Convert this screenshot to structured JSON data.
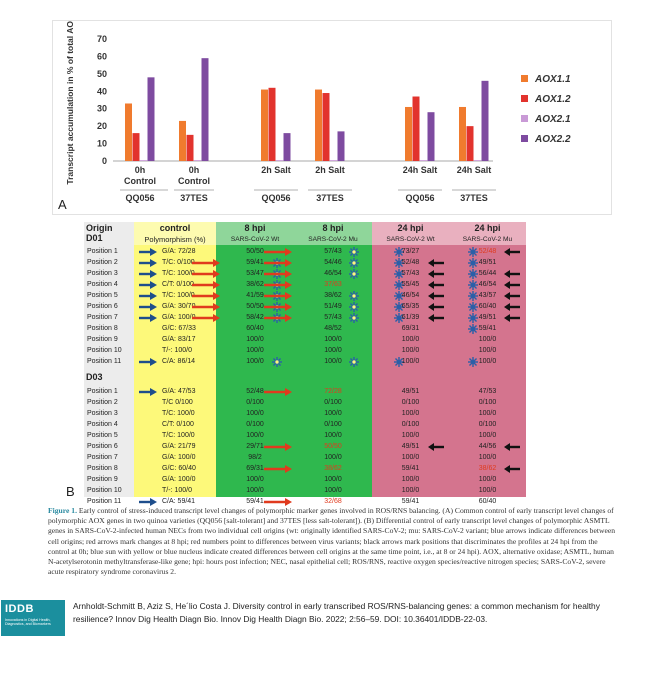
{
  "panel_a_letter": "A",
  "panel_b_letter": "B",
  "chart_data": {
    "type": "bar",
    "ylabel": "Transcript accumulation in % of total AOX",
    "ylim": [
      0,
      70
    ],
    "yticks": [
      0,
      10,
      20,
      30,
      40,
      50,
      60,
      70
    ],
    "categories": [
      "0h Control",
      "0h Control",
      "2h Salt",
      "2h Salt",
      "24h Salt",
      "24h Salt"
    ],
    "groups": [
      "QQ056",
      "37TES",
      "QQ056",
      "37TES",
      "QQ056",
      "37TES"
    ],
    "series": [
      {
        "name": "AOX1.1",
        "color": "#f07b2e",
        "values": [
          33,
          23,
          41,
          41,
          31,
          31
        ]
      },
      {
        "name": "AOX1.2",
        "color": "#e2332d",
        "values": [
          16,
          15,
          42,
          39,
          37,
          20
        ]
      },
      {
        "name": "AOX2.1",
        "color": "#c99ad6",
        "values": [
          0.5,
          0.5,
          0.5,
          0.5,
          0.5,
          0.5
        ]
      },
      {
        "name": "AOX2.2",
        "color": "#7e4ba0",
        "values": [
          48,
          59,
          16,
          17,
          28,
          46
        ]
      }
    ],
    "grid": false,
    "legend": "right"
  },
  "table": {
    "col_headers": [
      "Origin",
      "control",
      "8 hpi",
      "8 hpi",
      "24 hpi",
      "24 hpi"
    ],
    "d01_label": "D01",
    "d03_label": "D03",
    "sub_headers": [
      "Polymorphism (%)",
      "SARS-CoV-2 Wt",
      "SARS-CoV-2 Mu",
      "SARS-CoV-2 Wt",
      "SARS-CoV-2 Mu"
    ],
    "d01_rows": [
      {
        "pos": "Position 1",
        "ctrl": "G/A: 72/28",
        "c8w": "50/50",
        "c8m": "57/43",
        "c24w": "73/27",
        "c24m": "52/48",
        "blue": true,
        "r8m": true,
        "s8w": false,
        "s8m": true,
        "b24w": true,
        "b24m": true,
        "bk24w": false,
        "bk24m": true,
        "red24m": true
      },
      {
        "pos": "Position 2",
        "ctrl": "T/C: 0/100",
        "c8w": "59/41",
        "c8m": "54/46",
        "c24w": "52/48",
        "c24m": "49/51",
        "blue": true,
        "r8w": true,
        "r8m": true,
        "s8w": true,
        "s8m": true,
        "b24w": true,
        "b24m": true,
        "bk24w": true,
        "bk24m": false
      },
      {
        "pos": "Position 3",
        "ctrl": "T/C: 100/0",
        "c8w": "53/47",
        "c8m": "46/54",
        "c24w": "57/43",
        "c24m": "56/44",
        "blue": true,
        "r8w": true,
        "r8m": true,
        "s8w": true,
        "s8m": true,
        "b24w": true,
        "b24m": true,
        "bk24w": true,
        "bk24m": true
      },
      {
        "pos": "Position 4",
        "ctrl": "C/T: 0/100",
        "c8w": "38/62",
        "c8m": "37/63",
        "c24w": "55/45",
        "c24m": "46/54",
        "blue": true,
        "r8w": true,
        "r8m": true,
        "s8w": true,
        "s8m": false,
        "red8m": true,
        "b24w": true,
        "b24m": true,
        "bk24w": true,
        "bk24m": true
      },
      {
        "pos": "Position 5",
        "ctrl": "T/C: 100/0",
        "c8w": "41/59",
        "c8m": "38/62",
        "c24w": "46/54",
        "c24m": "43/57",
        "blue": true,
        "r8w": true,
        "r8m": true,
        "s8w": true,
        "s8m": true,
        "b24w": true,
        "b24m": true,
        "bk24w": true,
        "bk24m": true
      },
      {
        "pos": "Position 6",
        "ctrl": "G/A: 30/70",
        "c8w": "50/50",
        "c8m": "51/49",
        "c24w": "65/35",
        "c24m": "60/40",
        "blue": true,
        "r8w": true,
        "r8m": true,
        "s8w": true,
        "s8m": true,
        "b24w": true,
        "b24m": true,
        "bk24w": true,
        "bk24m": true
      },
      {
        "pos": "Position 7",
        "ctrl": "G/A: 100/0",
        "c8w": "58/42",
        "c8m": "57/43",
        "c24w": "61/39",
        "c24m": "49/51",
        "blue": true,
        "r8w": true,
        "r8m": true,
        "s8w": true,
        "s8m": true,
        "b24w": true,
        "b24m": true,
        "bk24w": true,
        "bk24m": true
      },
      {
        "pos": "Position 8",
        "ctrl": "G/C: 67/33",
        "c8w": "60/40",
        "c8m": "48/52",
        "c24w": "69/31",
        "c24m": "59/41",
        "b24m": true
      },
      {
        "pos": "Position 9",
        "ctrl": "G/A: 83/17",
        "c8w": "100/0",
        "c8m": "100/0",
        "c24w": "100/0",
        "c24m": "100/0"
      },
      {
        "pos": "Position 10",
        "ctrl": "T/-: 100/0",
        "c8w": "100/0",
        "c8m": "100/0",
        "c24w": "100/0",
        "c24m": "100/0"
      },
      {
        "pos": "Position 11",
        "ctrl": "C/A: 86/14",
        "c8w": "100/0",
        "c8m": "100/0",
        "c24w": "100/0",
        "c24m": "100/0",
        "blue": true,
        "s8w": true,
        "s8m": true,
        "b24w": true,
        "b24m": true
      }
    ],
    "d03_rows": [
      {
        "pos": "Position 1",
        "ctrl": "G/A: 47/53",
        "c8w": "52/48",
        "c8m": "72/28",
        "c24w": "49/51",
        "c24m": "47/53",
        "blue": true,
        "r8m": true,
        "red8m": true
      },
      {
        "pos": "Position 2",
        "ctrl": "T/C 0/100",
        "c8w": "0/100",
        "c8m": "0/100",
        "c24w": "0/100",
        "c24m": "0/100"
      },
      {
        "pos": "Position 3",
        "ctrl": "T/C: 100/0",
        "c8w": "100/0",
        "c8m": "100/0",
        "c24w": "100/0",
        "c24m": "100/0"
      },
      {
        "pos": "Position 4",
        "ctrl": "C/T: 0/100",
        "c8w": "0/100",
        "c8m": "0/100",
        "c24w": "0/100",
        "c24m": "0/100"
      },
      {
        "pos": "Position 5",
        "ctrl": "T/C: 100/0",
        "c8w": "100/0",
        "c8m": "100/0",
        "c24w": "100/0",
        "c24m": "100/0"
      },
      {
        "pos": "Position 6",
        "ctrl": "G/A: 21/79",
        "c8w": "29/71",
        "c8m": "50/50",
        "c24w": "49/51",
        "c24m": "44/56",
        "r8m": true,
        "red8m": true,
        "bk24w": true,
        "bk24m": true
      },
      {
        "pos": "Position 7",
        "ctrl": "G/A: 100/0",
        "c8w": "98/2",
        "c8m": "100/0",
        "c24w": "100/0",
        "c24m": "100/0"
      },
      {
        "pos": "Position 8",
        "ctrl": "G/C: 60/40",
        "c8w": "69/31",
        "c8m": "38/62",
        "c24w": "59/41",
        "c24m": "38/62",
        "r8m": true,
        "red8m": true,
        "red24m": true,
        "bk24m": true
      },
      {
        "pos": "Position 9",
        "ctrl": "G/A: 100/0",
        "c8w": "100/0",
        "c8m": "100/0",
        "c24w": "100/0",
        "c24m": "100/0"
      },
      {
        "pos": "Position 10",
        "ctrl": "T/-: 100/0",
        "c8w": "100/0",
        "c8m": "100/0",
        "c24w": "100/0",
        "c24m": "100/0"
      },
      {
        "pos": "Position 11",
        "ctrl": "C/A: 59/41",
        "c8w": "59/41",
        "c8m": "32/68",
        "c24w": "59/41",
        "c24m": "60/40",
        "blue": true,
        "r8m": true,
        "red8m": true
      }
    ]
  },
  "caption": {
    "label": "Figure 1.",
    "text": " Early control of stress-induced transcript level changes of polymorphic marker genes involved in ROS/RNS balancing. (A) Common control of early transcript level changes of polymorphic AOX genes in two quinoa varieties (QQ056 [salt-tolerant] and 37TES [less salt-tolerant]). (B) Differential control of early transcript level changes of polymorphic ASMTL genes in SARS-CoV-2-infected human NECs from two individual cell origins (wt: originally identified SARS-CoV-2; mu: SARS-CoV-2 variant; blue arrows indicate differences between cell origins; red arrows mark changes at 8 hpi; red numbers point to differences between virus variants; black arrows mark positions that discriminates the profiles at 24 hpi from the control at 0h; blue sun with yellow or blue nucleus indicate created differences between cell origins at the same time point, i.e., at 8 or 24 hpi). AOX, alternative oxidase; ASMTL, human N-acetylserotonin methyltransferase-like gene; hpi: hours post infection; NEC, nasal epithelial cell; ROS/RNS, reactive oxygen species/reactive nitrogen species; SARS-CoV-2, severe acute respiratory syndrome coronavirus 2."
  },
  "logo": {
    "title": "IDDB",
    "subtitle": "Innovations in Digital Health, Diagnostics, and Biomarkers"
  },
  "citation": "Arnholdt-Schmitt B, Aziz S, He´lio Costa J. Diversity control in early transcribed ROS/RNS-balancing genes: a common mechanism for healthy resilience? Innov Dig Health Diagn Bio. Innov Dig Health Diagn Bio. 2022; 2:56–59. DOI: 10.36401/IDDB-22-03.",
  "colors": {
    "yellow_band": "#fdf97a",
    "green_band": "#2fb84e",
    "pink_band": "#d4748e",
    "grey_band": "#ececec",
    "header_yellow": "#fdfbb0",
    "header_green": "#8fd69a",
    "header_pink": "#e9b0bf",
    "blue_arrow": "#1e4e8c",
    "red_arrow": "#e03a1e",
    "logo_teal": "#1b8f9e"
  }
}
